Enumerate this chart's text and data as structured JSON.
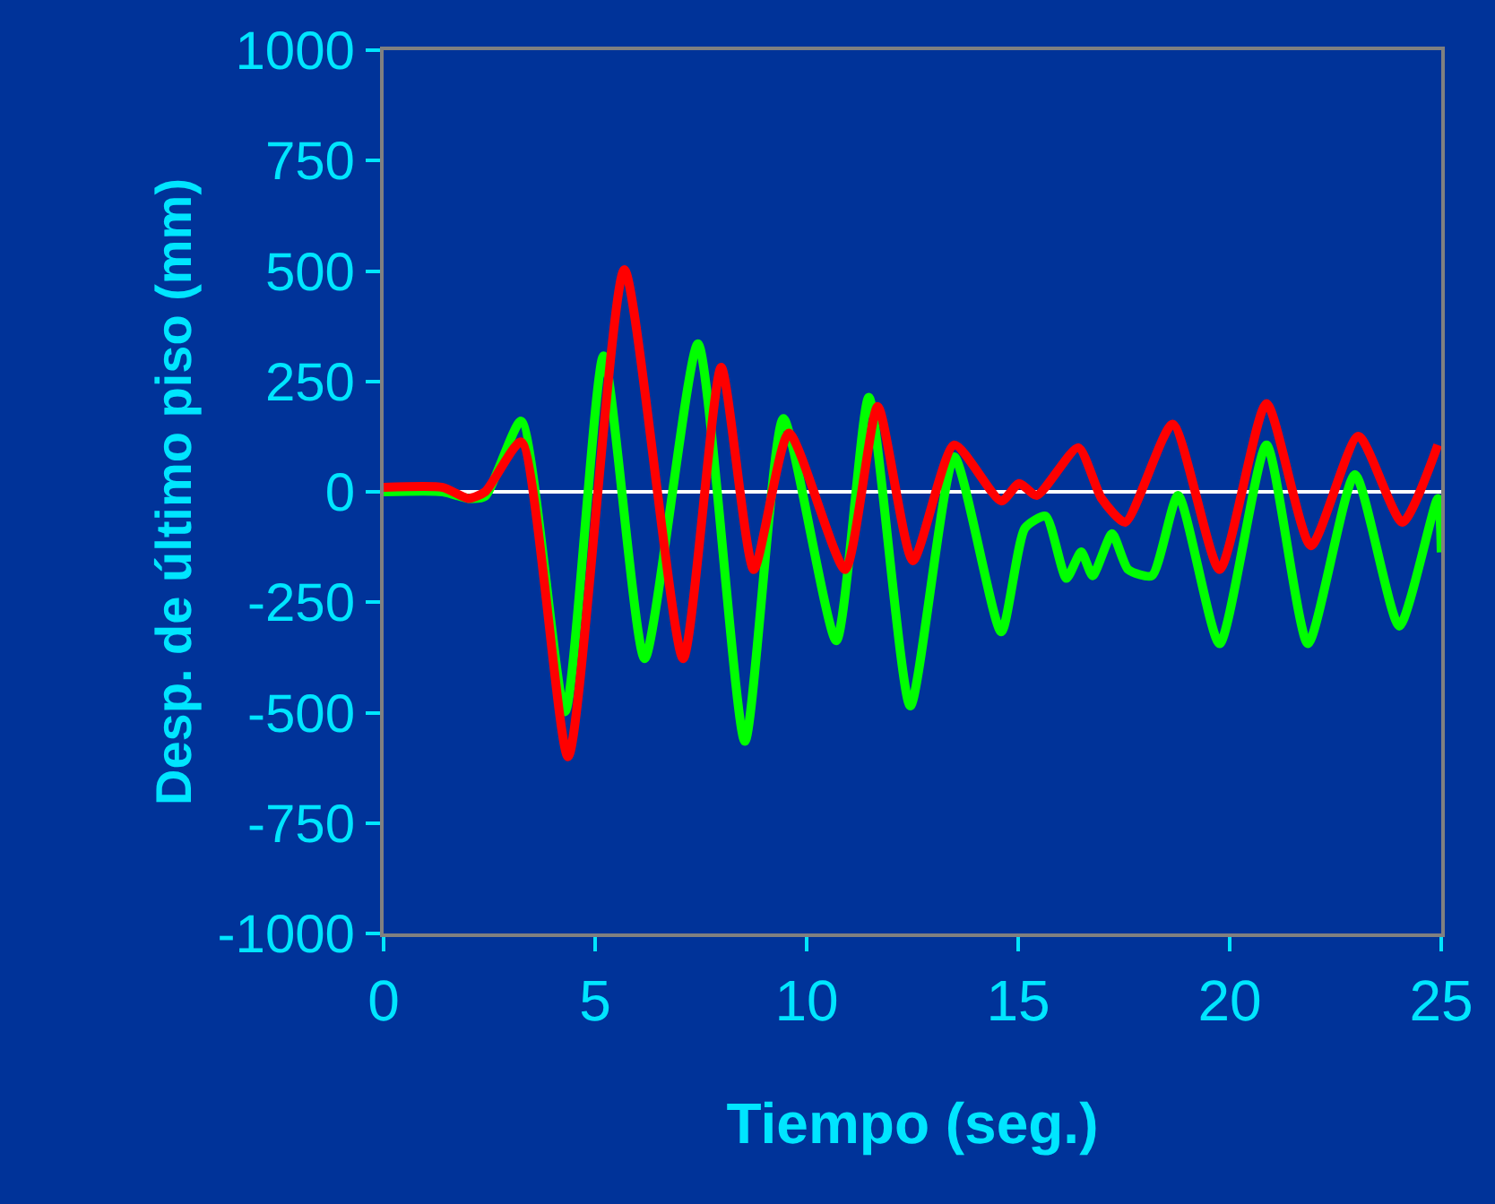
{
  "chart_data": {
    "type": "line",
    "xlabel": "Tiempo (seg.)",
    "ylabel": "Desp. de último piso (mm)",
    "xlim": [
      0,
      25
    ],
    "xticks": [
      0,
      5,
      10,
      15,
      20,
      25
    ],
    "ylim": [
      -1000,
      1000
    ],
    "yticks": [
      -1000,
      -750,
      -500,
      -250,
      0,
      250,
      500,
      750,
      1000
    ],
    "grid": false,
    "marker": "none",
    "line_style": "solid",
    "ref_lines": [
      {
        "axis": "y",
        "value": 0,
        "color": "#ffffff"
      }
    ],
    "series": [
      {
        "color": "#00ff00",
        "x": [
          0,
          1.4,
          2.0,
          2.4,
          3.25,
          4.29,
          5.2,
          6.17,
          7.43,
          8.54,
          9.45,
          10.7,
          11.47,
          12.45,
          13.49,
          14.6,
          15.16,
          15.65,
          16.14,
          16.49,
          16.76,
          17.22,
          17.6,
          18.16,
          18.78,
          19.76,
          20.87,
          21.85,
          22.96,
          24.01,
          24.92,
          25
        ],
        "values": [
          0,
          0,
          -15,
          -10,
          160,
          -498,
          308,
          -378,
          335,
          -565,
          166,
          -337,
          214,
          -485,
          79,
          -317,
          -82,
          -55,
          -196,
          -136,
          -190,
          -95,
          -176,
          -190,
          -8,
          -344,
          106,
          -344,
          39,
          -304,
          -15,
          -137
        ]
      },
      {
        "color": "#ff0000",
        "x": [
          0,
          1.4,
          2.0,
          2.4,
          3.25,
          4.36,
          5.69,
          7.08,
          7.98,
          8.75,
          9.58,
          10.91,
          11.68,
          12.51,
          13.49,
          14.6,
          15.02,
          15.44,
          16.42,
          16.97,
          17.53,
          18.65,
          19.76,
          20.87,
          21.92,
          23.04,
          24.08,
          24.92
        ],
        "values": [
          10,
          10,
          -15,
          0,
          113,
          -600,
          503,
          -378,
          282,
          -176,
          133,
          -176,
          193,
          -156,
          106,
          -21,
          19,
          -8,
          100,
          -15,
          -69,
          153,
          -176,
          200,
          -122,
          126,
          -69,
          106
        ]
      }
    ]
  }
}
